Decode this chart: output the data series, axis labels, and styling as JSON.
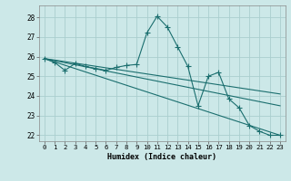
{
  "xlabel": "Humidex (Indice chaleur)",
  "bg_color": "#cce8e8",
  "grid_color": "#aacece",
  "line_color": "#1a6e6e",
  "xlim": [
    -0.5,
    23.5
  ],
  "ylim": [
    21.7,
    28.6
  ],
  "yticks": [
    22,
    23,
    24,
    25,
    26,
    27,
    28
  ],
  "xticks": [
    0,
    1,
    2,
    3,
    4,
    5,
    6,
    7,
    8,
    9,
    10,
    11,
    12,
    13,
    14,
    15,
    16,
    17,
    18,
    19,
    20,
    21,
    22,
    23
  ],
  "series1_x": [
    0,
    1,
    2,
    3,
    4,
    5,
    6,
    7,
    8,
    9,
    10,
    11,
    12,
    13,
    14,
    15,
    16,
    17,
    18,
    19,
    20,
    21,
    22,
    23
  ],
  "series1_y": [
    25.9,
    25.7,
    25.3,
    25.65,
    25.5,
    25.4,
    25.3,
    25.45,
    25.55,
    25.6,
    27.2,
    28.05,
    27.5,
    26.5,
    25.5,
    23.5,
    25.0,
    25.2,
    23.85,
    23.4,
    22.5,
    22.2,
    22.0,
    22.0
  ],
  "series2_x": [
    0,
    23
  ],
  "series2_y": [
    25.9,
    22.0
  ],
  "series3_x": [
    0,
    23
  ],
  "series3_y": [
    25.9,
    23.5
  ],
  "series4_x": [
    0,
    23
  ],
  "series4_y": [
    25.9,
    24.1
  ]
}
